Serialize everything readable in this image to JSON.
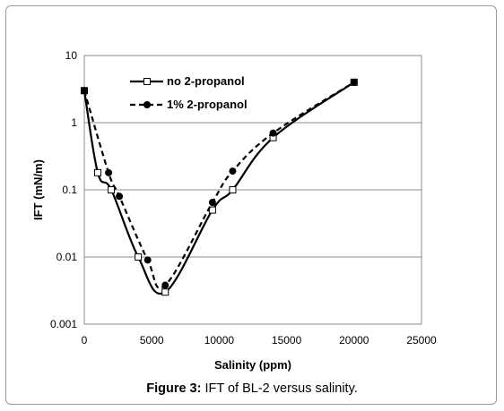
{
  "figure": {
    "caption_label": "Figure 3:",
    "caption_text": " IFT of BL-2 versus salinity."
  },
  "chart_data": {
    "type": "line",
    "title": "",
    "xlabel": "Salinity (ppm)",
    "ylabel": "IFT (mN/m)",
    "xlim": [
      0,
      25000
    ],
    "ylim": [
      0.001,
      10
    ],
    "yscale": "log",
    "grid": "horizontal major gridlines",
    "legend_position": "top-left",
    "x_ticks": [
      "0",
      "5000",
      "10000",
      "15000",
      "20000",
      "25000"
    ],
    "y_ticks": [
      "0.001",
      "0.01",
      "0.1",
      "1",
      "10"
    ],
    "series": [
      {
        "name": "no 2-propanol",
        "line": "solid",
        "marker": "open-square",
        "color": "#000000",
        "x": [
          0,
          1000,
          2000,
          4000,
          6000,
          9500,
          11000,
          14000,
          20000
        ],
        "y": [
          3,
          0.18,
          0.1,
          0.01,
          0.003,
          0.05,
          0.1,
          0.6,
          4
        ]
      },
      {
        "name": "1% 2-propanol",
        "line": "dashed",
        "marker": "filled-circle",
        "color": "#000000",
        "x": [
          0,
          1800,
          2600,
          4700,
          6000,
          9500,
          11000,
          14000,
          20000
        ],
        "y": [
          3,
          0.18,
          0.08,
          0.009,
          0.0038,
          0.065,
          0.19,
          0.7,
          4
        ]
      }
    ]
  }
}
